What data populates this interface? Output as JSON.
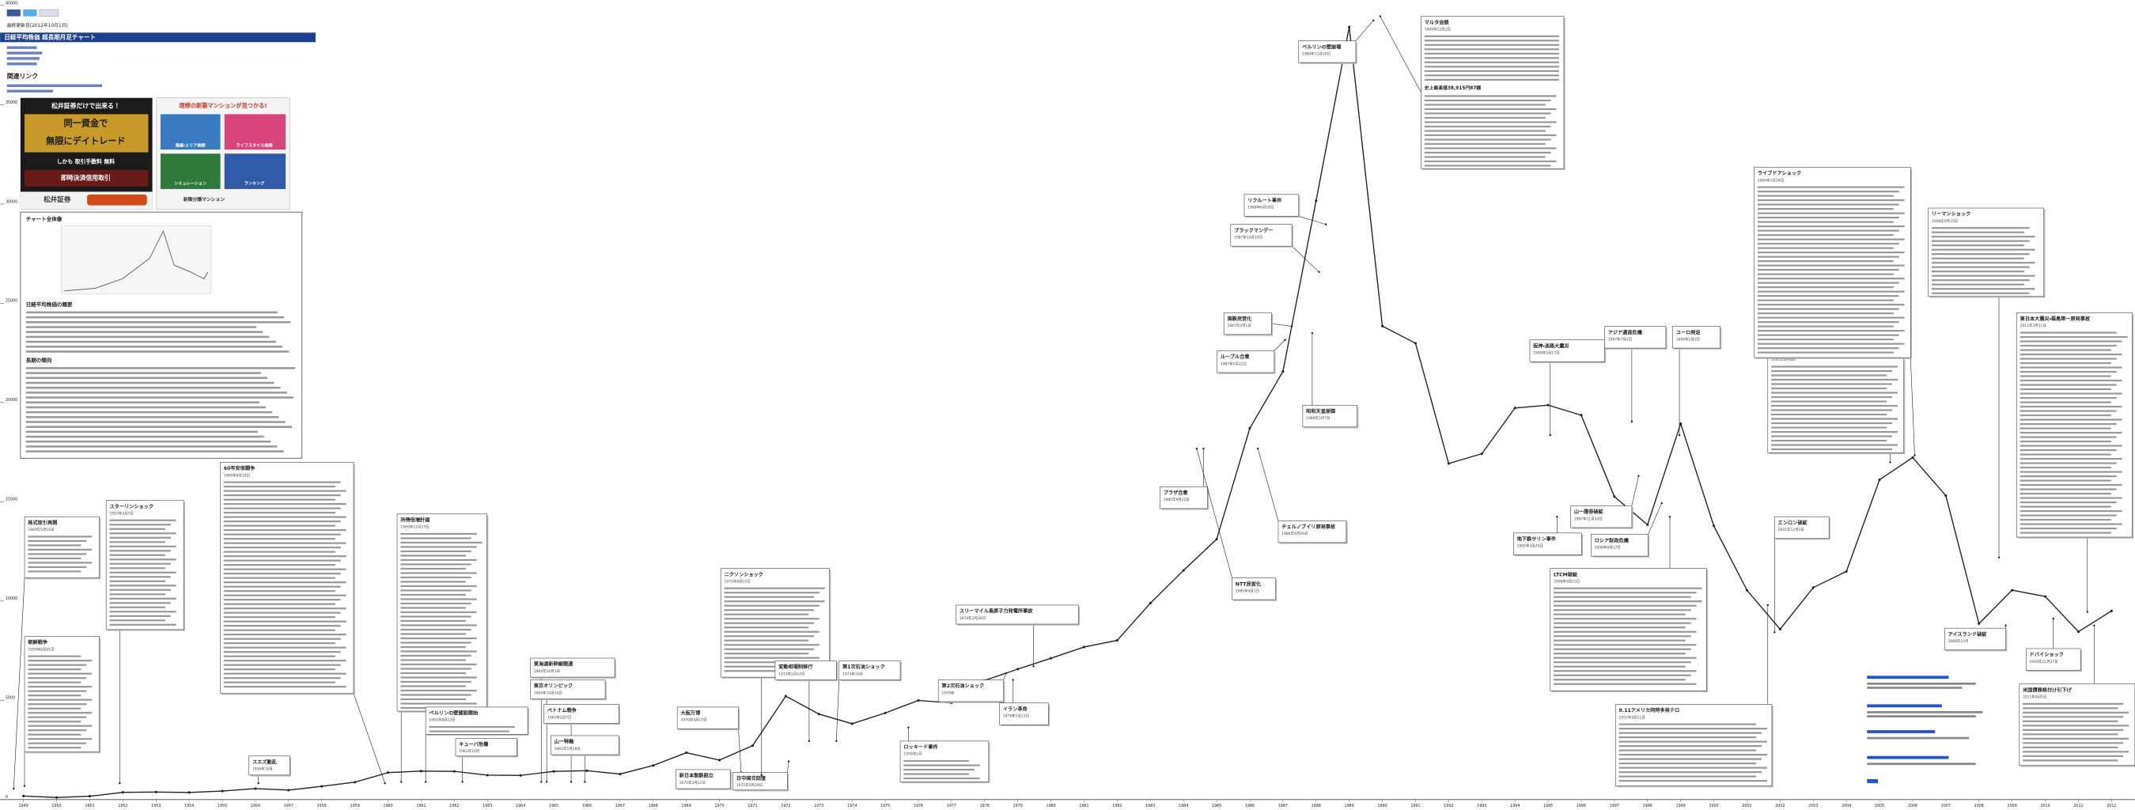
{
  "page": {
    "updated": "最終更新日(2012年10月1日)",
    "related": "関連リンク",
    "ad1": [
      "松井証券だけで出来る！",
      "同一資金で",
      "無限にデイトレード",
      "しかも 取引手数料 無料",
      "即時決済信用取引",
      "松井証券"
    ],
    "ad2": [
      "理想の新築マンションが見つかる!",
      "路線・エリア検索",
      "ライフスタイル検索",
      "シミュレーション",
      "ランキング",
      "新築分譲マンション"
    ],
    "article": {
      "heading": "チャート全体像",
      "sections": [
        "日経平均株価の概要",
        "長期の傾向"
      ]
    }
  },
  "chart_data": {
    "type": "line",
    "title": "日経平均株価 超長期月足チャート",
    "color": "#222222",
    "grid": false,
    "categories": [
      "1949",
      "1950",
      "1951",
      "1952",
      "1953",
      "1954",
      "1955",
      "1956",
      "1957",
      "1958",
      "1959",
      "1960",
      "1961",
      "1962",
      "1963",
      "1964",
      "1965",
      "1966",
      "1967",
      "1968",
      "1969",
      "1970",
      "1971",
      "1972",
      "1973",
      "1974",
      "1975",
      "1976",
      "1977",
      "1978",
      "1979",
      "1980",
      "1981",
      "1982",
      "1983",
      "1984",
      "1985",
      "1986",
      "1987",
      "1988",
      "1989",
      "1990",
      "1991",
      "1992",
      "1993",
      "1994",
      "1995",
      "1996",
      "1997",
      "1998",
      "1999",
      "2000",
      "2001",
      "2002",
      "2003",
      "2004",
      "2005",
      "2006",
      "2007",
      "2008",
      "2009",
      "2010",
      "2011",
      "2012"
    ],
    "values": [
      176,
      102,
      166,
      362,
      377,
      356,
      425,
      549,
      474,
      666,
      874,
      1356,
      1432,
      1420,
      1226,
      1216,
      1417,
      1452,
      1283,
      1715,
      2359,
      1987,
      2714,
      5208,
      4307,
      3817,
      4359,
      4991,
      4866,
      6002,
      6569,
      7116,
      7682,
      8017,
      9894,
      11543,
      13113,
      18701,
      21564,
      30159,
      38916,
      23849,
      22984,
      16925,
      17417,
      19723,
      19868,
      19361,
      15259,
      13842,
      18934,
      13786,
      10543,
      8579,
      10677,
      11489,
      16111,
      17226,
      15308,
      8860,
      10546,
      10229,
      8455,
      9500
    ],
    "ylim": [
      0,
      40000
    ],
    "yticks": [
      0,
      5000,
      10000,
      15000,
      20000,
      25000,
      30000,
      35000,
      40000
    ],
    "annotations": [
      {
        "title": "株式取引再開",
        "date": "1949年5月16日"
      },
      {
        "title": "朝鮮戦争",
        "date": "1950年6月25日"
      },
      {
        "title": "スターリンショック",
        "date": "1953年3月5日"
      },
      {
        "title": "スエズ動乱",
        "date": "1956年10月"
      },
      {
        "title": "60年安保闘争",
        "date": "1960年6月15日"
      },
      {
        "title": "所得倍増計画",
        "date": "1960年12月27日"
      },
      {
        "title": "ベルリンの壁建設開始",
        "date": "1961年8月13日"
      },
      {
        "title": "キューバ危機",
        "date": "1962年10月"
      },
      {
        "title": "東海道新幹線開通",
        "date": "1964年10月1日"
      },
      {
        "title": "東京オリンピック",
        "date": "1964年10月10日"
      },
      {
        "title": "ベトナム戦争",
        "date": "1965年2月7日"
      },
      {
        "title": "山一特融",
        "date": "1965年5月28日"
      },
      {
        "title": "大阪万博",
        "date": "1970年3月15日"
      },
      {
        "title": "新日本製鉄設立",
        "date": "1970年3月31日"
      },
      {
        "title": "日中国交回復",
        "date": "1972年9月29日"
      },
      {
        "title": "ニクソンショック",
        "date": "1971年8月15日"
      },
      {
        "title": "変動相場制移行",
        "date": "1973年2月14日"
      },
      {
        "title": "第1次石油ショック",
        "date": "1973年10月"
      },
      {
        "title": "ロッキード事件",
        "date": "1976年2月"
      },
      {
        "title": "第2次石油ショック",
        "date": "1979年"
      },
      {
        "title": "スリーマイル島原子力発電所事故",
        "date": "1979年3月28日"
      },
      {
        "title": "イラン革命",
        "date": "1979年2月11日"
      },
      {
        "title": "プラザ合意",
        "date": "1985年9月22日"
      },
      {
        "title": "NTT民営化",
        "date": "1985年4月1日"
      },
      {
        "title": "チェルノブイリ原発事故",
        "date": "1986年4月26日"
      },
      {
        "title": "ルーブル合意",
        "date": "1987年2月22日"
      },
      {
        "title": "国鉄民営化",
        "date": "1987年4月1日"
      },
      {
        "title": "ブラックマンデー",
        "date": "1987年10月19日"
      },
      {
        "title": "リクルート事件",
        "date": "1988年6月18日"
      },
      {
        "title": "昭和天皇崩御",
        "date": "1989年1月7日"
      },
      {
        "title": "ベルリンの壁崩壊",
        "date": "1989年11月10日"
      },
      {
        "title": "マルタ会談",
        "date": "1989年12月2日",
        "note": "史上最高値38,915円87銭"
      },
      {
        "title": "阪神・淡路大震災",
        "date": "1995年1月17日"
      },
      {
        "title": "地下鉄サリン事件",
        "date": "1995年3月20日"
      },
      {
        "title": "アジア通貨危機",
        "date": "1997年7月2日"
      },
      {
        "title": "ユーロ発足",
        "date": "1999年1月1日"
      },
      {
        "title": "山一證券破綻",
        "date": "1997年11月24日"
      },
      {
        "title": "ロシア財政危機",
        "date": "1998年8月17日"
      },
      {
        "title": "LTCM破綻",
        "date": "1998年9月23日"
      },
      {
        "title": "9.11アメリカ同時多発テロ",
        "date": "2001年9月11日"
      },
      {
        "title": "郵政解散",
        "date": "2005年8月8日"
      },
      {
        "title": "ライブドアショック",
        "date": "2006年1月16日"
      },
      {
        "title": "エンロン破綻",
        "date": "2001年12月2日"
      },
      {
        "title": "リーマンショック",
        "date": "2008年9月15日"
      },
      {
        "title": "東日本大震災・福島第一原発事故",
        "date": "2011年3月11日"
      },
      {
        "title": "アイスランド破綻",
        "date": "2008年10月"
      },
      {
        "title": "ドバイショック",
        "date": "2009年11月27日"
      },
      {
        "title": "米国債務格付け引下げ",
        "date": "2011年8月5日"
      }
    ]
  }
}
